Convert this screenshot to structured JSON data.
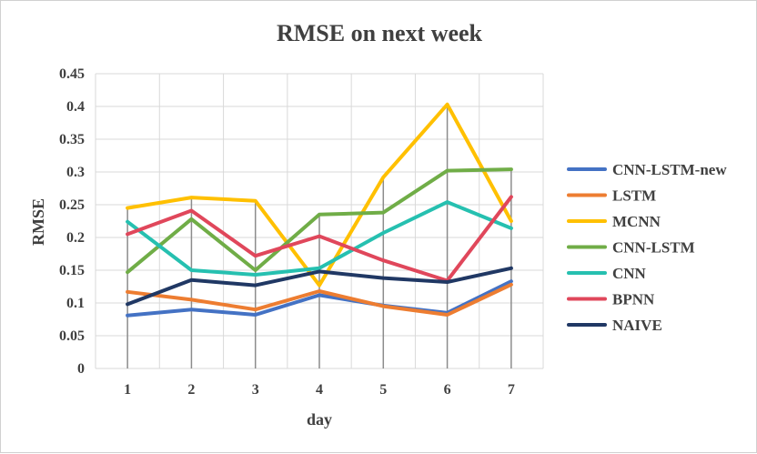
{
  "chart_data": {
    "type": "line",
    "title": "RMSE on next week",
    "xlabel": "day",
    "ylabel": "RMSE",
    "x": [
      1,
      2,
      3,
      4,
      5,
      6,
      7
    ],
    "ylim": [
      0,
      0.45
    ],
    "yticks": [
      0,
      0.05,
      0.1,
      0.15,
      0.2,
      0.25,
      0.3,
      0.35,
      0.4,
      0.45
    ],
    "ytick_labels": [
      "0",
      "0.05",
      "0.1",
      "0.15",
      "0.2",
      "0.25",
      "0.3",
      "0.35",
      "0.4",
      "0.45"
    ],
    "grid": true,
    "legend_position": "right",
    "series": [
      {
        "name": "CNN-LSTM-new",
        "color": "#4472C4",
        "values": [
          0.081,
          0.09,
          0.082,
          0.112,
          0.096,
          0.085,
          0.133
        ]
      },
      {
        "name": "LSTM",
        "color": "#ED7D31",
        "values": [
          0.117,
          0.105,
          0.09,
          0.118,
          0.095,
          0.082,
          0.128
        ]
      },
      {
        "name": "MCNN",
        "color": "#FFC000",
        "values": [
          0.245,
          0.261,
          0.256,
          0.127,
          0.292,
          0.403,
          0.225
        ]
      },
      {
        "name": "CNN-LSTM",
        "color": "#70AD47",
        "values": [
          0.147,
          0.228,
          0.15,
          0.235,
          0.238,
          0.302,
          0.304
        ]
      },
      {
        "name": "CNN",
        "color": "#26C0B0",
        "values": [
          0.224,
          0.15,
          0.143,
          0.153,
          0.207,
          0.254,
          0.214
        ]
      },
      {
        "name": "BPNN",
        "color": "#E0475B",
        "values": [
          0.205,
          0.241,
          0.172,
          0.202,
          0.165,
          0.134,
          0.262
        ]
      },
      {
        "name": "NAIVE",
        "color": "#203864",
        "values": [
          0.098,
          0.135,
          0.127,
          0.148,
          0.138,
          0.132,
          0.153
        ]
      }
    ]
  }
}
